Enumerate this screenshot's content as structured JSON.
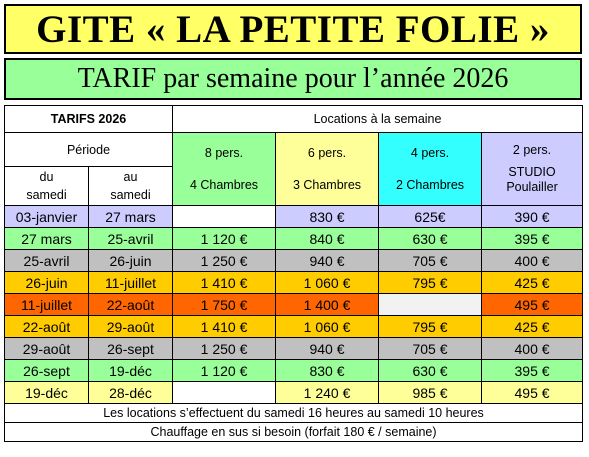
{
  "title": "GITE « LA PETITE FOLIE »",
  "subtitle": "TARIF par semaine  pour l’année 2026",
  "table": {
    "tarifs_label": "TARIFS 2026",
    "locations_label": "Locations à la semaine",
    "periode_label": "Période",
    "du_label": "du samedi",
    "au_label": "au samedi",
    "categories": [
      {
        "persons": "8 pers.",
        "rooms": "4 Chambres"
      },
      {
        "persons": "6 pers.",
        "rooms": "3 Chambres"
      },
      {
        "persons": "4 pers.",
        "rooms": "2 Chambres"
      },
      {
        "persons": "2 pers.",
        "rooms": "STUDIO Poulailler"
      }
    ],
    "rows": [
      {
        "du": "03-janvier",
        "au": "27 mars",
        "p8": "",
        "p6": "830 €",
        "p4": "625€",
        "p2": "390 €"
      },
      {
        "du": "27 mars",
        "au": "25-avril",
        "p8": "1 120 €",
        "p6": "840 €",
        "p4": "630 €",
        "p2": "395 €"
      },
      {
        "du": "25-avril",
        "au": "26-juin",
        "p8": "1 250 €",
        "p6": "940 €",
        "p4": "705 €",
        "p2": "400 €"
      },
      {
        "du": "26-juin",
        "au": "11-juillet",
        "p8": "1 410 €",
        "p6": "1 060 €",
        "p4": "795 €",
        "p2": "425 €"
      },
      {
        "du": "11-juillet",
        "au": "22-août",
        "p8": "1 750 €",
        "p6": "1 400 €",
        "p4": "",
        "p2": "495 €"
      },
      {
        "du": "22-août",
        "au": "29-août",
        "p8": "1 410 €",
        "p6": "1 060 €",
        "p4": "795 €",
        "p2": "425 €"
      },
      {
        "du": "29-août",
        "au": "26-sept",
        "p8": "1 250 €",
        "p6": "940 €",
        "p4": "705 €",
        "p2": "400 €"
      },
      {
        "du": "26-sept",
        "au": "19-déc",
        "p8": "1 120 €",
        "p6": "830 €",
        "p4": "630 €",
        "p2": "395 €"
      },
      {
        "du": "19-déc",
        "au": "28-déc",
        "p8": "",
        "p6": "1 240 €",
        "p4": "985 €",
        "p2": "495 €"
      }
    ],
    "footer_line1": "Les locations s’effectuent du samedi 16 heures au samedi 10 heures",
    "footer_line2": "Chauffage en sus si besoin (forfait 180 € / semaine)"
  },
  "colors": {
    "banner": "#ffff66",
    "subbanner": "#99ff99",
    "green": "#99ff99",
    "yellow": "#ffff99",
    "cyan": "#33ffff",
    "lavender": "#ccccff",
    "grey": "#c0c0c0",
    "gold": "#ffcc00",
    "orange": "#ff6600"
  }
}
